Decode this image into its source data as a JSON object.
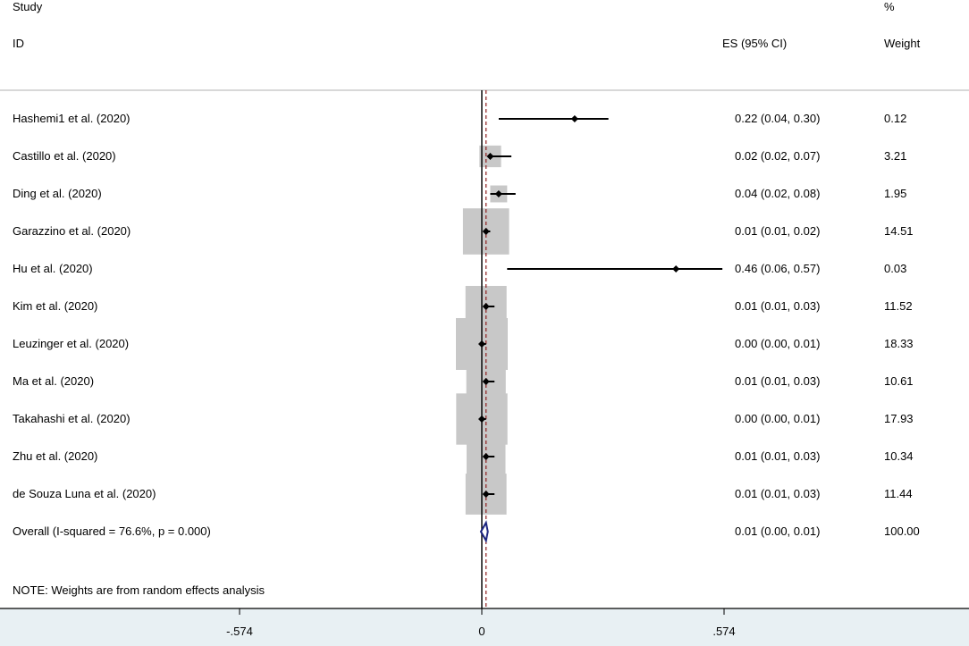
{
  "header": {
    "study_label": "Study",
    "id_label": "ID",
    "es_label": "ES (95% CI)",
    "pct_label": "%",
    "weight_label": "Weight"
  },
  "note": "NOTE: Weights are from random effects analysis",
  "colors": {
    "axis_band": "#e8f0f3",
    "box": "#c8c8c8",
    "diamond": "#1a237e",
    "null_line": "#000000",
    "overall_line": "#8b1a1a"
  },
  "chart_data": {
    "type": "forest",
    "x_ticks": [
      -0.574,
      0,
      0.574
    ],
    "x_tick_labels": [
      "-.574",
      "0",
      ".574"
    ],
    "xlim": [
      -0.574,
      0.574
    ],
    "studies": [
      {
        "label": "Hashemi1 et al. (2020)",
        "es": 0.22,
        "lo": 0.04,
        "hi": 0.3,
        "ci_text": "0.22 (0.04, 0.30)",
        "weight": 0.12,
        "weight_text": "0.12"
      },
      {
        "label": "Castillo et al. (2020)",
        "es": 0.02,
        "lo": 0.02,
        "hi": 0.07,
        "ci_text": "0.02 (0.02, 0.07)",
        "weight": 3.21,
        "weight_text": "3.21"
      },
      {
        "label": "Ding et al. (2020)",
        "es": 0.04,
        "lo": 0.02,
        "hi": 0.08,
        "ci_text": "0.04 (0.02, 0.08)",
        "weight": 1.95,
        "weight_text": "1.95"
      },
      {
        "label": "Garazzino et al. (2020)",
        "es": 0.01,
        "lo": 0.01,
        "hi": 0.02,
        "ci_text": "0.01 (0.01, 0.02)",
        "weight": 14.51,
        "weight_text": "14.51"
      },
      {
        "label": "Hu et al. (2020)",
        "es": 0.46,
        "lo": 0.06,
        "hi": 0.57,
        "ci_text": "0.46 (0.06, 0.57)",
        "weight": 0.03,
        "weight_text": "0.03"
      },
      {
        "label": "Kim et al. (2020)",
        "es": 0.01,
        "lo": 0.01,
        "hi": 0.03,
        "ci_text": "0.01 (0.01, 0.03)",
        "weight": 11.52,
        "weight_text": "11.52"
      },
      {
        "label": "Leuzinger et al. (2020)",
        "es": 0.0,
        "lo": 0.0,
        "hi": 0.01,
        "ci_text": "0.00 (0.00, 0.01)",
        "weight": 18.33,
        "weight_text": "18.33"
      },
      {
        "label": "Ma et al. (2020)",
        "es": 0.01,
        "lo": 0.01,
        "hi": 0.03,
        "ci_text": "0.01 (0.01, 0.03)",
        "weight": 10.61,
        "weight_text": "10.61"
      },
      {
        "label": "Takahashi et al. (2020)",
        "es": 0.0,
        "lo": 0.0,
        "hi": 0.01,
        "ci_text": "0.00 (0.00, 0.01)",
        "weight": 17.93,
        "weight_text": "17.93"
      },
      {
        "label": "Zhu et al. (2020)",
        "es": 0.01,
        "lo": 0.01,
        "hi": 0.03,
        "ci_text": "0.01 (0.01, 0.03)",
        "weight": 10.34,
        "weight_text": "10.34"
      },
      {
        "label": "de Souza Luna et al. (2020)",
        "es": 0.01,
        "lo": 0.01,
        "hi": 0.03,
        "ci_text": "0.01 (0.01, 0.03)",
        "weight": 11.44,
        "weight_text": "11.44"
      }
    ],
    "overall": {
      "label": "Overall  (I-squared = 76.6%, p = 0.000)",
      "es": 0.01,
      "lo": 0.0,
      "hi": 0.01,
      "ci_text": "0.01 (0.00, 0.01)",
      "weight_text": "100.00"
    }
  }
}
